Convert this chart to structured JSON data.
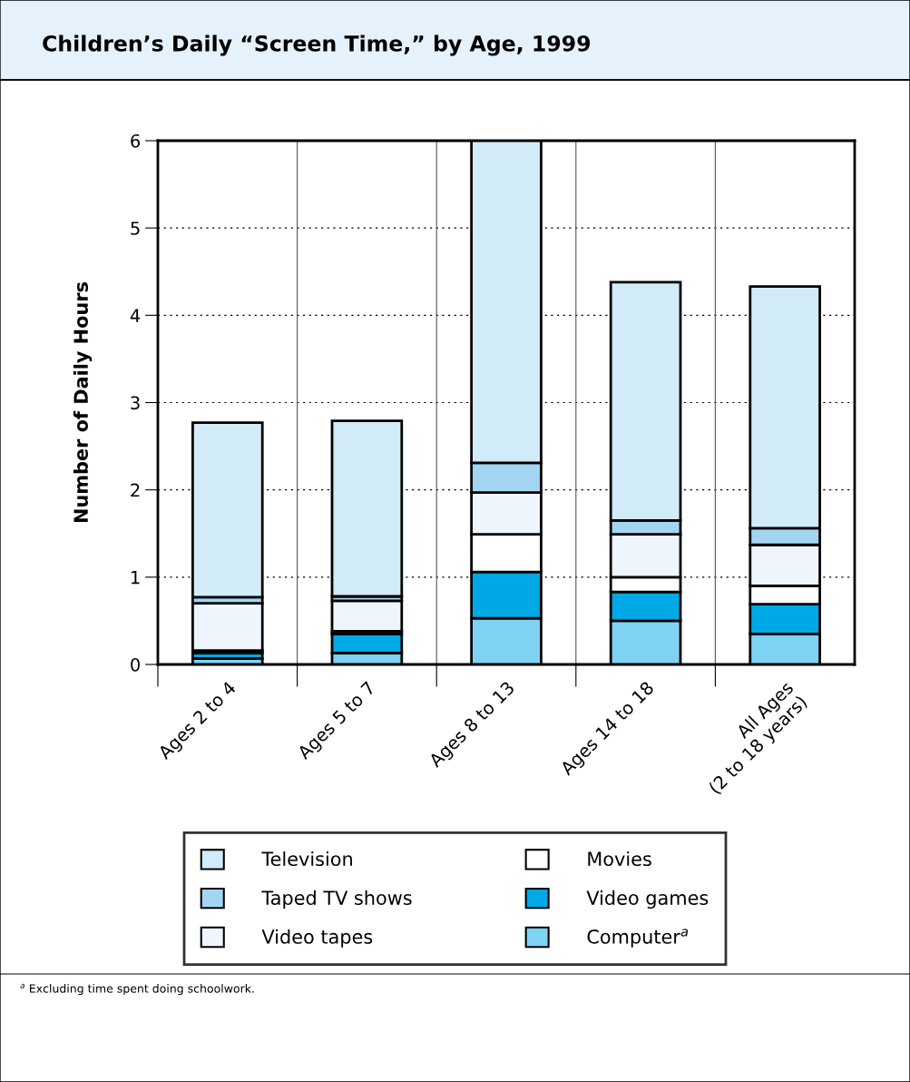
{
  "chart_data": {
    "type": "bar",
    "stacked": true,
    "title": "Children’s Daily “Screen Time,” by Age, 1999",
    "ylabel": "Number of Daily Hours",
    "categories": [
      "Ages 2 to 4",
      "Ages 5 to 7",
      "Ages 8 to 13",
      "Ages 14 to 18",
      "All Ages\n(2 to 18 years)"
    ],
    "series": [
      {
        "name": "Computer$^{a}$",
        "color": "#7fd3f2",
        "values": [
          0.07,
          0.13,
          0.53,
          0.5,
          0.35
        ]
      },
      {
        "name": "Video games",
        "color": "#00a9e6",
        "values": [
          0.06,
          0.22,
          0.53,
          0.33,
          0.34
        ]
      },
      {
        "name": "Movies",
        "color": "#ffffff",
        "values": [
          0.03,
          0.03,
          0.43,
          0.17,
          0.21
        ]
      },
      {
        "name": "Video tapes",
        "color": "#eef5fc",
        "values": [
          0.54,
          0.35,
          0.48,
          0.49,
          0.47
        ]
      },
      {
        "name": "Taped TV shows",
        "color": "#a3d5f3",
        "values": [
          0.07,
          0.05,
          0.34,
          0.16,
          0.19
        ]
      },
      {
        "name": "Television",
        "color": "#d2ebf9",
        "values": [
          2.0,
          2.01,
          3.69,
          2.73,
          2.77
        ]
      }
    ],
    "ylim": [
      0,
      6
    ],
    "yticks": [
      0,
      1,
      2,
      3,
      4,
      5,
      6
    ],
    "grid": "y",
    "legend": "bottom",
    "annotations": [
      "$^{a}$ Excluding time spent doing schoolwork."
    ]
  }
}
